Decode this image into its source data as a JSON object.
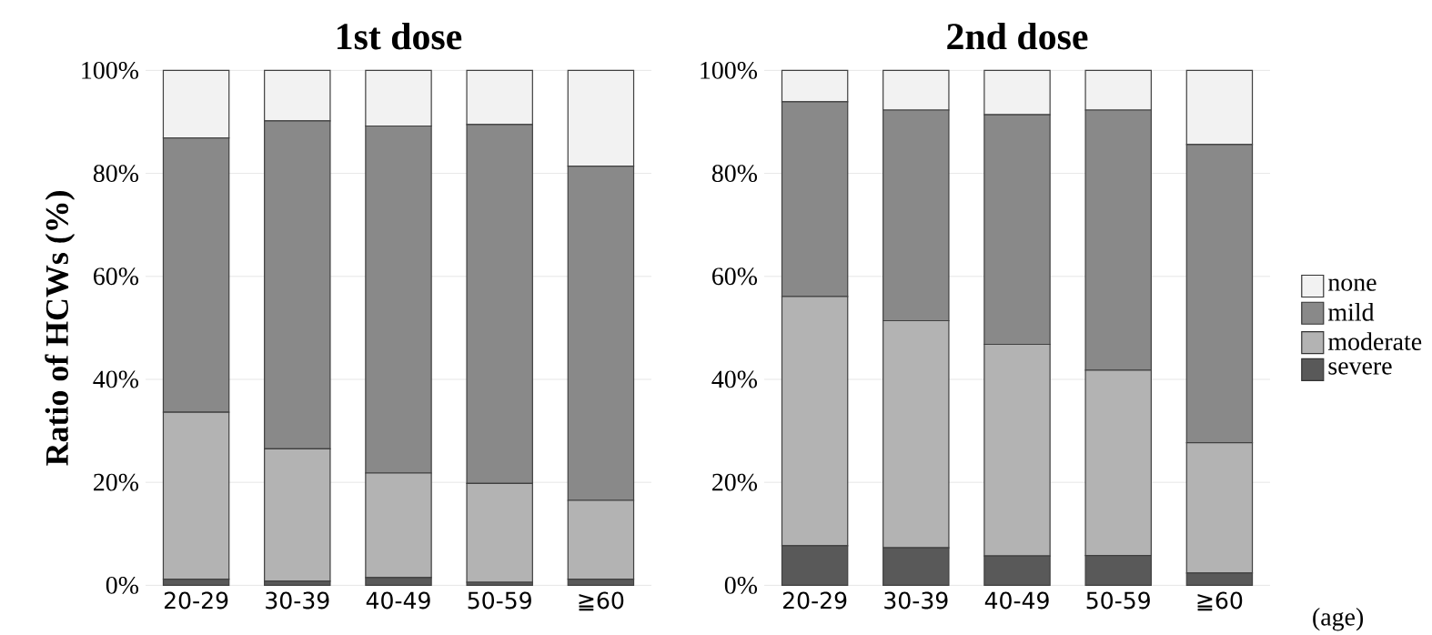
{
  "chart_data": [
    {
      "type": "bar",
      "title": "1st dose",
      "ylabel": "Ratio of HCWs (%)",
      "stacked": true,
      "grid": "y",
      "categories": [
        "20-29",
        "30-39",
        "40-49",
        "50-59",
        "≧60"
      ],
      "ylim": [
        0,
        100
      ],
      "yticks": [
        {
          "value": 0,
          "label": "0%"
        },
        {
          "value": 20,
          "label": "20%"
        },
        {
          "value": 40,
          "label": "40%"
        },
        {
          "value": 60,
          "label": "60%"
        },
        {
          "value": 80,
          "label": "80%"
        },
        {
          "value": 100,
          "label": "100%"
        }
      ],
      "series": [
        {
          "color": "#595959",
          "values": [
            1.2,
            0.8,
            1.5,
            0.6,
            1.2
          ]
        },
        {
          "color": "#b3b3b3",
          "values": [
            32.4,
            25.7,
            20.3,
            19.2,
            15.3
          ]
        },
        {
          "color": "#898989",
          "values": [
            53.3,
            63.7,
            67.4,
            69.7,
            64.9
          ]
        },
        {
          "color": "#f2f2f2",
          "values": [
            13.1,
            9.8,
            10.8,
            10.5,
            18.6
          ]
        }
      ]
    },
    {
      "type": "bar",
      "title": "2nd dose",
      "stacked": true,
      "grid": "y",
      "legend": "right",
      "annotations": [
        "(age)"
      ],
      "categories": [
        "20-29",
        "30-39",
        "40-49",
        "50-59",
        "≧60"
      ],
      "ylim": [
        0,
        100
      ],
      "yticks": [
        {
          "value": 0,
          "label": "0%"
        },
        {
          "value": 20,
          "label": "20%"
        },
        {
          "value": 40,
          "label": "40%"
        },
        {
          "value": 60,
          "label": "60%"
        },
        {
          "value": 80,
          "label": "80%"
        },
        {
          "value": 100,
          "label": "100%"
        }
      ],
      "series": [
        {
          "name": "severe",
          "color": "#595959",
          "values": [
            7.7,
            7.3,
            5.7,
            5.8,
            2.4
          ]
        },
        {
          "name": "moderate",
          "color": "#b3b3b3",
          "values": [
            48.4,
            44.1,
            41.1,
            36.0,
            25.3
          ]
        },
        {
          "name": "mild",
          "color": "#898989",
          "values": [
            37.8,
            40.9,
            44.6,
            50.5,
            57.9
          ]
        },
        {
          "name": "none",
          "color": "#f2f2f2",
          "values": [
            6.1,
            7.7,
            8.6,
            7.7,
            14.4
          ]
        }
      ]
    }
  ]
}
